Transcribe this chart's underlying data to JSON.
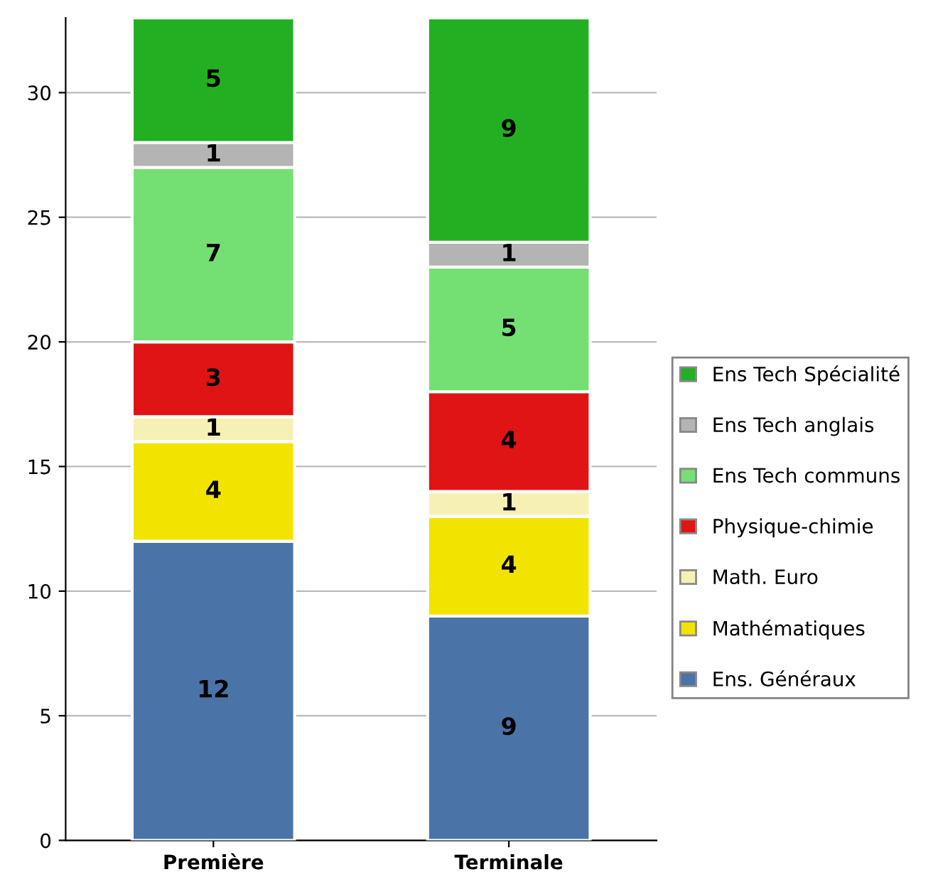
{
  "chart_data": {
    "type": "bar",
    "stacked": true,
    "categories": [
      "Première",
      "Terminale"
    ],
    "series": [
      {
        "name": "Ens. Généraux",
        "color": "#4a74a8",
        "values": [
          12,
          9
        ]
      },
      {
        "name": "Mathématiques",
        "color": "#f2e400",
        "values": [
          4,
          4
        ]
      },
      {
        "name": "Math. Euro",
        "color": "#f6f0b4",
        "values": [
          1,
          1
        ]
      },
      {
        "name": "Physique-chimie",
        "color": "#e01414",
        "values": [
          3,
          4
        ]
      },
      {
        "name": "Ens Tech communs",
        "color": "#74e074",
        "values": [
          7,
          5
        ]
      },
      {
        "name": "Ens Tech anglais",
        "color": "#b4b4b4",
        "values": [
          1,
          1
        ]
      },
      {
        "name": "Ens Tech Spécialité",
        "color": "#22b022",
        "values": [
          5,
          9
        ]
      }
    ],
    "ylim": [
      0,
      33
    ],
    "yticks": [
      0,
      5,
      10,
      15,
      20,
      25,
      30
    ],
    "grid": "y",
    "legend": "right",
    "data_labels": true
  }
}
